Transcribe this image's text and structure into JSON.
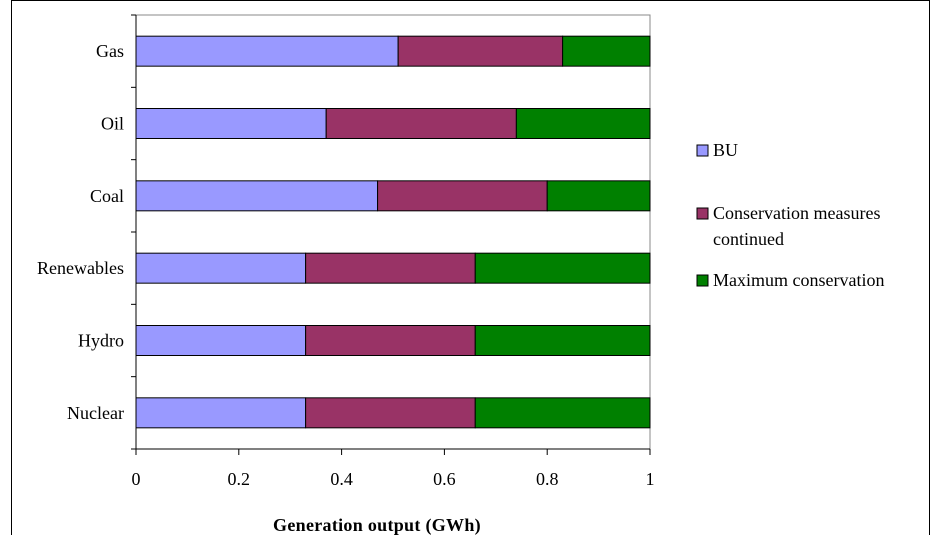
{
  "chart_data": {
    "type": "bar",
    "orientation": "horizontal",
    "stacked": true,
    "normalized": true,
    "title": "",
    "xlabel": "Generation output (GWh)",
    "ylabel": "",
    "xlim": [
      0,
      1
    ],
    "xticks": [
      "0",
      "0.2",
      "0.4",
      "0.6",
      "0.8",
      "1"
    ],
    "grid": false,
    "legend_position": "right",
    "categories": [
      "Gas",
      "Oil",
      "Coal",
      "Renewables",
      "Hydro",
      "Nuclear"
    ],
    "series": [
      {
        "name": "BU",
        "color": "#9999ff",
        "values": [
          0.51,
          0.37,
          0.47,
          0.33,
          0.33,
          0.33
        ]
      },
      {
        "name": "Conservation measures continued",
        "color": "#993366",
        "values": [
          0.32,
          0.37,
          0.33,
          0.33,
          0.33,
          0.33
        ]
      },
      {
        "name": "Maximum conservation",
        "color": "#008000",
        "values": [
          0.17,
          0.26,
          0.2,
          0.34,
          0.34,
          0.34
        ]
      }
    ],
    "legend": {
      "items": [
        {
          "lines": [
            "BU"
          ]
        },
        {
          "lines": [
            "Conservation measures",
            "continued"
          ]
        },
        {
          "lines": [
            "Maximum conservation"
          ]
        }
      ]
    }
  }
}
